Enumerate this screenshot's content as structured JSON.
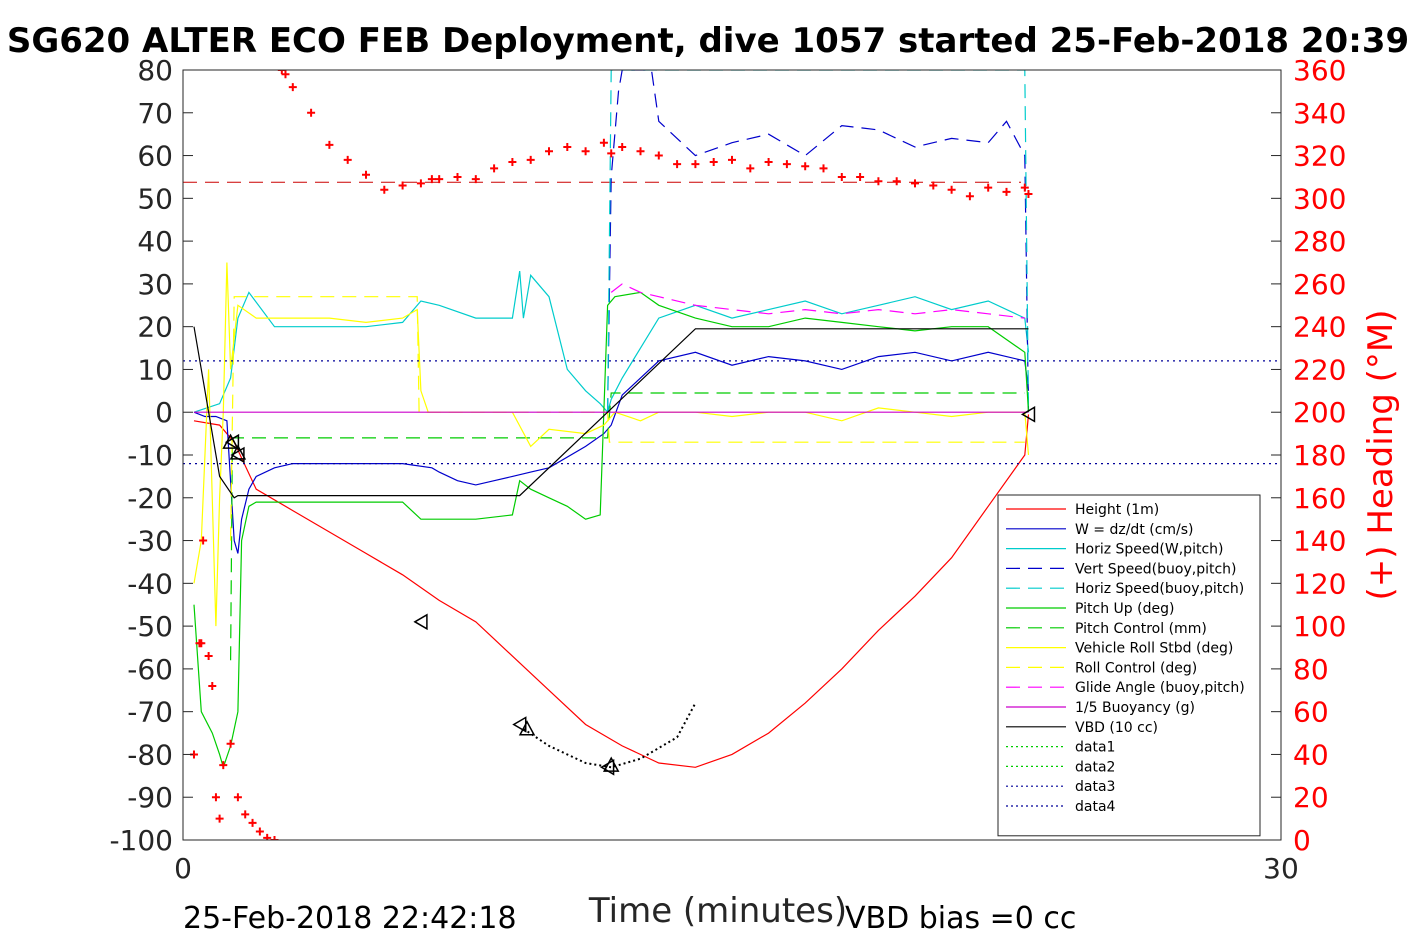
{
  "chart_data": {
    "type": "line",
    "title": "SG620 ALTER ECO FEB Deployment, dive 1057 started 25-Feb-2018 20:39",
    "xlabel": "Time (minutes)",
    "ylabel": "",
    "y2label": "(+) Heading (°M)",
    "xlim": [
      0,
      30
    ],
    "ylim": [
      -100,
      80
    ],
    "y2lim": [
      0,
      360
    ],
    "xticks": [
      "0",
      "30"
    ],
    "yticks": [
      "80",
      "70",
      "60",
      "50",
      "40",
      "30",
      "20",
      "10",
      "0",
      "-10",
      "-20",
      "-30",
      "-40",
      "-50",
      "-60",
      "-70",
      "-80",
      "-90",
      "-100"
    ],
    "y2ticks": [
      "360",
      "340",
      "320",
      "300",
      "280",
      "260",
      "240",
      "220",
      "200",
      "180",
      "160",
      "140",
      "120",
      "100",
      "80",
      "60",
      "40",
      "20",
      "0"
    ],
    "footer_left": "25-Feb-2018 22:42:18",
    "footer_right": "VBD bias =0 cc",
    "grid": false,
    "legend_position": "lower-right",
    "series": [
      {
        "name": "Height (1m)",
        "color": "#ff0000",
        "style": "solid",
        "x": [
          0.3,
          1.0,
          1.4,
          2.0,
          3.0,
          4.0,
          5.0,
          6.0,
          7.0,
          8.0,
          9.0,
          10.0,
          11.0,
          12.0,
          13.0,
          14.0,
          15.0,
          16.0,
          17.0,
          18.0,
          19.0,
          20.0,
          21.0,
          22.0,
          23.0,
          23.1
        ],
        "y": [
          -2,
          -3,
          -7,
          -18,
          -23,
          -28,
          -33,
          -38,
          -44,
          -49,
          -57,
          -65,
          -73,
          -78,
          -82,
          -83,
          -80,
          -75,
          -68,
          -60,
          -51,
          -43,
          -34,
          -22,
          -10,
          -0.5
        ]
      },
      {
        "name": "W = dz/dt (cm/s)",
        "color": "#0000cc",
        "style": "solid",
        "x": [
          0.3,
          0.6,
          0.9,
          1.2,
          1.4,
          1.5,
          1.6,
          1.8,
          2.0,
          2.5,
          3.0,
          4.0,
          5.0,
          6.0,
          6.8,
          7.0,
          7.5,
          8.0,
          8.5,
          9.0,
          9.5,
          10.0,
          11.0,
          11.5,
          11.7,
          12.0,
          13.0,
          14.0,
          15.0,
          16.0,
          17.0,
          18.0,
          19.0,
          20.0,
          21.0,
          22.0,
          23.0,
          23.1
        ],
        "y": [
          0,
          -1,
          -1,
          -2,
          -30,
          -33,
          -25,
          -18,
          -15,
          -13,
          -12,
          -12,
          -12,
          -12,
          -13,
          -14,
          -16,
          -17,
          -16,
          -15,
          -14,
          -13,
          -8,
          -5,
          -3,
          4,
          12,
          14,
          11,
          13,
          12,
          10,
          13,
          14,
          12,
          14,
          12,
          5
        ]
      },
      {
        "name": "Horiz Speed(W,pitch)",
        "color": "#00cccc",
        "style": "solid",
        "x": [
          0.3,
          1.0,
          1.3,
          1.5,
          1.8,
          2.5,
          3.0,
          4.0,
          5.0,
          6.0,
          6.5,
          7.0,
          8.0,
          9.0,
          9.2,
          9.3,
          9.5,
          10.0,
          10.5,
          11.0,
          11.4,
          11.6,
          11.7,
          12.0,
          12.5,
          13.0,
          14.0,
          15.0,
          16.0,
          17.0,
          18.0,
          19.0,
          20.0,
          21.0,
          22.0,
          23.0,
          23.1
        ],
        "y": [
          0,
          2,
          8,
          22,
          28,
          20,
          20,
          20,
          20,
          21,
          26,
          25,
          22,
          22,
          33,
          22,
          32,
          27,
          10,
          5,
          2,
          0,
          3,
          8,
          15,
          22,
          25,
          22,
          24,
          26,
          23,
          25,
          27,
          24,
          26,
          22,
          14
        ]
      },
      {
        "name": "Vert Speed(buoy,pitch)",
        "color": "#0000cc",
        "style": "dashed",
        "x": [
          11.6,
          11.7,
          11.9,
          12.0,
          12.3,
          12.8,
          13.0,
          14.0,
          15.0,
          16.0,
          17.0,
          18.0,
          19.0,
          20.0,
          21.0,
          22.0,
          22.5,
          23.0,
          23.1
        ],
        "y": [
          0,
          55,
          75,
          80,
          80,
          80,
          68,
          60,
          63,
          65,
          60,
          67,
          66,
          62,
          64,
          63,
          68,
          60,
          0
        ]
      },
      {
        "name": "Horiz Speed(buoy,pitch)",
        "color": "#00cccc",
        "style": "dashed",
        "x": [
          11.6,
          11.7,
          11.8,
          23.0,
          23.1
        ],
        "y": [
          0,
          80,
          80,
          80,
          0
        ]
      },
      {
        "name": "Pitch Up (deg)",
        "color": "#00cc00",
        "style": "solid",
        "x": [
          0.3,
          0.5,
          0.8,
          1.0,
          1.1,
          1.3,
          1.5,
          1.6,
          1.8,
          2.0,
          2.5,
          3.0,
          4.0,
          5.0,
          6.0,
          6.5,
          7.0,
          8.0,
          9.0,
          9.2,
          9.5,
          10.0,
          10.5,
          11.0,
          11.4,
          11.6,
          11.8,
          12.5,
          13.0,
          14.0,
          15.0,
          16.0,
          17.0,
          18.0,
          19.0,
          20.0,
          21.0,
          22.0,
          23.0,
          23.1
        ],
        "y": [
          -45,
          -70,
          -75,
          -80,
          -83,
          -78,
          -70,
          -30,
          -22,
          -21,
          -21,
          -21,
          -21,
          -21,
          -21,
          -25,
          -25,
          -25,
          -24,
          -16,
          -18,
          -20,
          -22,
          -25,
          -24,
          25,
          27,
          28,
          25,
          22,
          20,
          20,
          22,
          21,
          20,
          19,
          20,
          20,
          14,
          0
        ]
      },
      {
        "name": "Pitch Control (mm)",
        "color": "#00cc00",
        "style": "dashed",
        "x": [
          1.3,
          1.35,
          1.4,
          11.6,
          11.7,
          23.0
        ],
        "y": [
          -58,
          -6,
          -6,
          -6,
          4.5,
          4.5
        ]
      },
      {
        "name": "Vehicle Roll Stbd (deg)",
        "color": "#ffff00",
        "style": "solid",
        "x": [
          0.3,
          0.5,
          0.7,
          0.9,
          1.0,
          1.1,
          1.2,
          1.3,
          1.5,
          2.0,
          3.0,
          4.0,
          5.0,
          6.0,
          6.4,
          6.5,
          6.7,
          7.0,
          8.0,
          9.0,
          9.5,
          10.0,
          11.0,
          11.5,
          11.8,
          12.5,
          13.0,
          14.0,
          15.0,
          16.0,
          17.0,
          18.0,
          19.0,
          20.0,
          21.0,
          22.0,
          23.0,
          23.1
        ],
        "y": [
          -40,
          -30,
          10,
          -50,
          -20,
          0,
          35,
          10,
          25,
          22,
          22,
          22,
          21,
          22,
          24,
          5,
          0,
          0,
          0,
          0,
          -8,
          -4,
          -5,
          -3,
          0,
          -2,
          0,
          0,
          -1,
          0,
          0,
          -2,
          1,
          0,
          -1,
          0,
          0,
          -10
        ]
      },
      {
        "name": "Roll Control (deg)",
        "color": "#ffff00",
        "style": "dashed",
        "x": [
          1.3,
          1.4,
          6.4,
          6.45,
          11.6,
          11.65,
          23.0
        ],
        "y": [
          -30,
          27,
          27,
          0,
          0,
          -7,
          -7
        ]
      },
      {
        "name": "Glide Angle (buoy,pitch)",
        "color": "#ff00ff",
        "style": "dashed",
        "x": [
          11.7,
          12.0,
          12.5,
          13.0,
          14.0,
          15.0,
          16.0,
          17.0,
          18.0,
          19.0,
          20.0,
          21.0,
          22.0,
          23.0
        ],
        "y": [
          28,
          30,
          28,
          27,
          25,
          24,
          23,
          24,
          23,
          24,
          23,
          24,
          23,
          22
        ]
      },
      {
        "name": "1/5 Buoyancy (g)",
        "color": "#cc00cc",
        "style": "solid",
        "x": [
          0.3,
          23.1
        ],
        "y": [
          0,
          0
        ]
      },
      {
        "name": "VBD (10 cc)",
        "color": "#000000",
        "style": "solid",
        "x": [
          0.3,
          1.0,
          1.4,
          1.5,
          9.2,
          11.6,
          14.0,
          23.1
        ],
        "y": [
          20,
          -15,
          -20,
          -19.5,
          -19.5,
          0,
          19.5,
          19.5
        ]
      },
      {
        "name": "data1",
        "color": "#00cc00",
        "style": "dotted",
        "x": [],
        "y": []
      },
      {
        "name": "data2",
        "color": "#00cc00",
        "style": "dotted",
        "x": [],
        "y": []
      },
      {
        "name": "data3",
        "color": "#000099",
        "style": "dotted",
        "x": [
          0,
          30
        ],
        "y": [
          12,
          12
        ]
      },
      {
        "name": "data4",
        "color": "#000099",
        "style": "dotted",
        "x": [
          0,
          30
        ],
        "y": [
          -12,
          -12
        ]
      }
    ],
    "heading_series": {
      "name": "Heading",
      "color": "#ff0000",
      "style": "plus-markers",
      "axis": "right",
      "x": [
        0.3,
        0.45,
        0.5,
        0.55,
        0.7,
        0.8,
        0.9,
        1.0,
        1.1,
        1.3,
        1.5,
        1.7,
        1.9,
        2.1,
        2.3,
        2.5,
        2.7,
        2.8,
        3.0,
        3.5,
        4.0,
        4.5,
        5.0,
        5.5,
        6.0,
        6.5,
        6.8,
        7.0,
        7.5,
        8.0,
        8.5,
        9.0,
        9.5,
        10.0,
        10.5,
        11.0,
        11.5,
        11.7,
        12.0,
        12.5,
        13.0,
        13.5,
        14.0,
        14.5,
        15.0,
        15.5,
        16.0,
        16.5,
        17.0,
        17.5,
        18.0,
        18.5,
        19.0,
        19.5,
        20.0,
        20.5,
        21.0,
        21.5,
        22.0,
        22.5,
        23.0,
        23.1
      ],
      "y": [
        40,
        92,
        92,
        140,
        86,
        72,
        20,
        10,
        35,
        45,
        20,
        12,
        8,
        4,
        1,
        0,
        360,
        358,
        352,
        340,
        325,
        318,
        311,
        304,
        306,
        307,
        309,
        309,
        310,
        309,
        314,
        317,
        318,
        322,
        324,
        322,
        326,
        321,
        324,
        322,
        320,
        316,
        316,
        317,
        318,
        314,
        317,
        316,
        315,
        314,
        310,
        310,
        308,
        308,
        307,
        306,
        304,
        301,
        305,
        303,
        305,
        302
      ]
    },
    "horizontal_refs": [
      {
        "axis": "right",
        "value": 307.5,
        "color": "#cc0000",
        "style": "dashed"
      }
    ],
    "markers": {
      "triangles_left": [
        {
          "x": 1.35,
          "y": -7
        },
        {
          "x": 1.5,
          "y": -10
        },
        {
          "x": 6.5,
          "y": -49
        },
        {
          "x": 9.2,
          "y": -73
        },
        {
          "x": 11.6,
          "y": -83
        },
        {
          "x": 23.1,
          "y": -0.5
        }
      ],
      "triangles_up": [
        {
          "x": 1.3,
          "y": -7
        },
        {
          "x": 1.5,
          "y": -9.5
        },
        {
          "x": 9.4,
          "y": -74
        },
        {
          "x": 11.7,
          "y": -82.5
        }
      ]
    },
    "dotted_segment": {
      "x": [
        9.3,
        10,
        11,
        11.7,
        12.5,
        13.5,
        14.0
      ],
      "y": [
        -74,
        -78,
        -82,
        -83,
        -81,
        -76,
        -68
      ]
    }
  }
}
